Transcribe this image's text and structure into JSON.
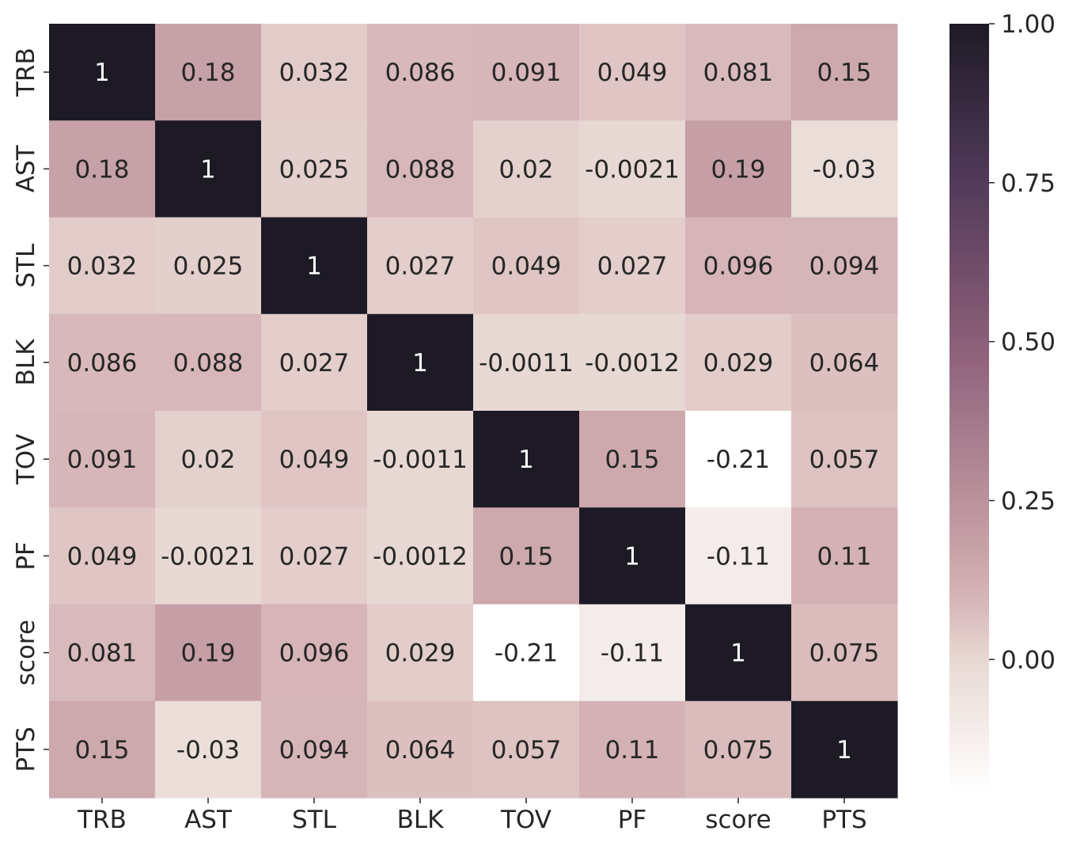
{
  "chart_data": {
    "type": "heatmap",
    "title": "",
    "xlabel": "",
    "ylabel": "",
    "x_categories": [
      "TRB",
      "AST",
      "STL",
      "BLK",
      "TOV",
      "PF",
      "score",
      "PTS"
    ],
    "y_categories": [
      "TRB",
      "AST",
      "STL",
      "BLK",
      "TOV",
      "PF",
      "score",
      "PTS"
    ],
    "values": [
      [
        1,
        0.18,
        0.032,
        0.086,
        0.091,
        0.049,
        0.081,
        0.15
      ],
      [
        0.18,
        1,
        0.025,
        0.088,
        0.02,
        -0.0021,
        0.19,
        -0.03
      ],
      [
        0.032,
        0.025,
        1,
        0.027,
        0.049,
        0.027,
        0.096,
        0.094
      ],
      [
        0.086,
        0.088,
        0.027,
        1,
        -0.0011,
        -0.0012,
        0.029,
        0.064
      ],
      [
        0.091,
        0.02,
        0.049,
        -0.0011,
        1,
        0.15,
        -0.21,
        0.057
      ],
      [
        0.049,
        -0.0021,
        0.027,
        -0.0012,
        0.15,
        1,
        -0.11,
        0.11
      ],
      [
        0.081,
        0.19,
        0.096,
        0.029,
        -0.21,
        -0.11,
        1,
        0.075
      ],
      [
        0.15,
        -0.03,
        0.094,
        0.064,
        0.057,
        0.11,
        0.075,
        1
      ]
    ],
    "annotations": [
      [
        "1",
        "0.18",
        "0.032",
        "0.086",
        "0.091",
        "0.049",
        "0.081",
        "0.15"
      ],
      [
        "0.18",
        "1",
        "0.025",
        "0.088",
        "0.02",
        "-0.0021",
        "0.19",
        "-0.03"
      ],
      [
        "0.032",
        "0.025",
        "1",
        "0.027",
        "0.049",
        "0.027",
        "0.096",
        "0.094"
      ],
      [
        "0.086",
        "0.088",
        "0.027",
        "1",
        "-0.0011",
        "-0.0012",
        "0.029",
        "0.064"
      ],
      [
        "0.091",
        "0.02",
        "0.049",
        "-0.0011",
        "1",
        "0.15",
        "-0.21",
        "0.057"
      ],
      [
        "0.049",
        "-0.0021",
        "0.027",
        "-0.0012",
        "0.15",
        "1",
        "-0.11",
        "0.11"
      ],
      [
        "0.081",
        "0.19",
        "0.096",
        "0.029",
        "-0.21",
        "-0.11",
        "1",
        "0.075"
      ],
      [
        "0.15",
        "-0.03",
        "0.094",
        "0.064",
        "0.057",
        "0.11",
        "0.075",
        "1"
      ]
    ],
    "colorbar": {
      "range": [
        -0.21,
        1
      ],
      "ticks": [
        0.0,
        0.25,
        0.5,
        0.75,
        1.0
      ],
      "tick_labels": [
        "0.00",
        "0.25",
        "0.50",
        "0.75",
        "1.00"
      ]
    },
    "colormap_stops": [
      {
        "value": -0.21,
        "color": "#ffffff"
      },
      {
        "value": 0.0,
        "color": "#e8d8d3"
      },
      {
        "value": 0.1,
        "color": "#d5b3b6"
      },
      {
        "value": 0.2,
        "color": "#c49ca4"
      },
      {
        "value": 0.5,
        "color": "#8c5e78"
      },
      {
        "value": 0.75,
        "color": "#523a5a"
      },
      {
        "value": 1.0,
        "color": "#1d1a26"
      }
    ],
    "grid": false,
    "legend": "colorbar-right"
  }
}
